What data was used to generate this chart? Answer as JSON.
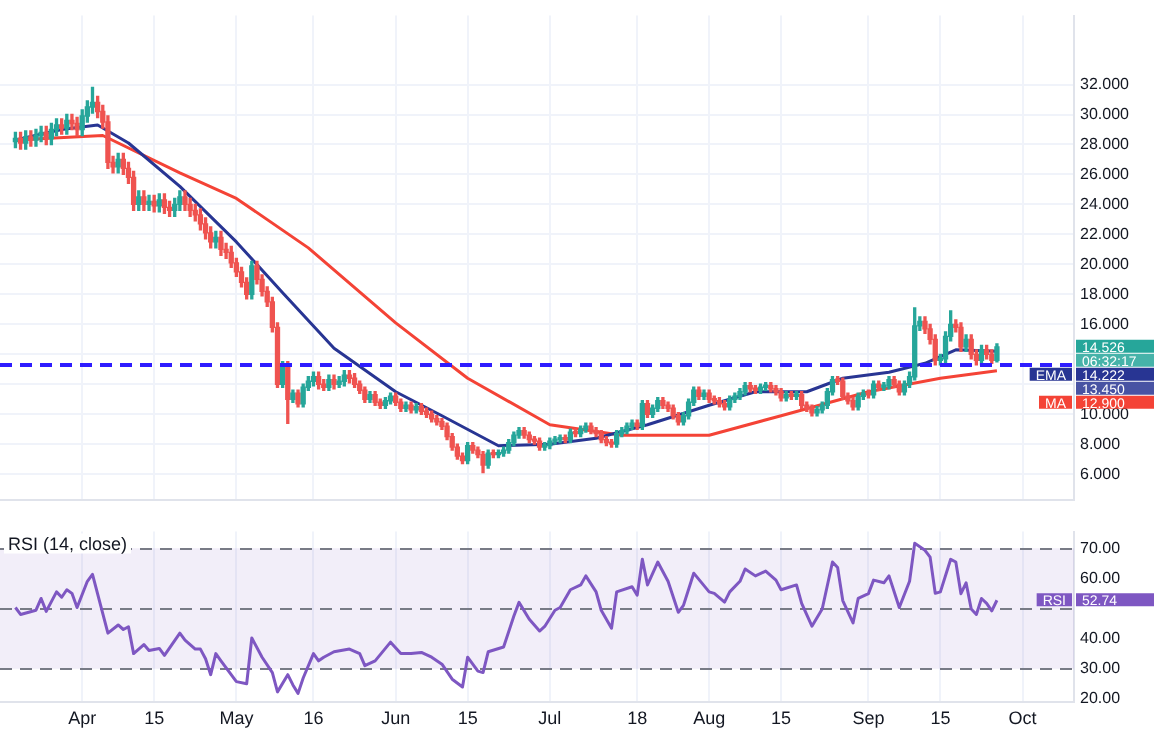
{
  "chart_data": [
    {
      "type": "candlestick",
      "grid": true,
      "tick_labels": "y",
      "x": [
        "--03-19",
        "--03-20",
        "--03-21",
        "--03-22",
        "--03-23",
        "--03-24",
        "--03-25",
        "--03-26",
        "--03-27",
        "--03-28",
        "--03-29",
        "--03-30",
        "--03-31",
        "--04-01",
        "--04-02",
        "--04-03",
        "--04-04",
        "--04-05",
        "--04-06",
        "--04-07",
        "--04-08",
        "--04-09",
        "--04-10",
        "--04-11",
        "--04-12",
        "--04-13",
        "--04-14",
        "--04-15",
        "--04-16",
        "--04-17",
        "--04-18",
        "--04-19",
        "--04-20",
        "--04-21",
        "--04-22",
        "--04-23",
        "--04-24",
        "--04-25",
        "--04-26",
        "--04-27",
        "--04-28",
        "--04-29",
        "--04-30",
        "--05-01",
        "--05-02",
        "--05-03",
        "--05-04",
        "--05-05",
        "--05-06",
        "--05-07",
        "--05-08",
        "--05-09",
        "--05-10",
        "--05-11",
        "--05-12",
        "--05-13",
        "--05-14",
        "--05-15",
        "--05-16",
        "--05-17",
        "--05-18",
        "--05-19",
        "--05-20",
        "--05-21",
        "--05-22",
        "--05-23",
        "--05-24",
        "--05-25",
        "--05-26",
        "--05-27",
        "--05-28",
        "--05-29",
        "--05-30",
        "--05-31",
        "--06-01",
        "--06-02",
        "--06-03",
        "--06-04",
        "--06-05",
        "--06-06",
        "--06-07",
        "--06-08",
        "--06-09",
        "--06-10",
        "--06-11",
        "--06-12",
        "--06-13",
        "--06-14",
        "--06-15",
        "--06-16",
        "--06-17",
        "--06-18",
        "--06-19",
        "--06-20",
        "--06-21",
        "--06-22",
        "--06-23",
        "--06-24",
        "--06-25",
        "--06-26",
        "--06-27",
        "--06-28",
        "--06-29",
        "--06-30",
        "--07-01",
        "--07-02",
        "--07-03",
        "--07-04",
        "--07-05",
        "--07-06",
        "--07-07",
        "--07-08",
        "--07-09",
        "--07-10",
        "--07-11",
        "--07-12",
        "--07-13",
        "--07-14",
        "--07-15",
        "--07-16",
        "--07-17",
        "--07-18",
        "--07-19",
        "--07-20",
        "--07-21",
        "--07-22",
        "--07-23",
        "--07-24",
        "--07-25",
        "--07-26",
        "--07-27",
        "--07-28",
        "--07-29",
        "--07-30",
        "--07-31",
        "--08-01",
        "--08-02",
        "--08-03",
        "--08-04",
        "--08-05",
        "--08-06",
        "--08-07",
        "--08-08",
        "--08-09",
        "--08-10",
        "--08-11",
        "--08-12",
        "--08-13",
        "--08-14",
        "--08-15",
        "--08-16",
        "--08-17",
        "--08-18",
        "--08-19",
        "--08-20",
        "--08-21",
        "--08-22",
        "--08-23",
        "--08-24",
        "--08-25",
        "--08-26",
        "--08-27",
        "--08-28",
        "--08-29",
        "--08-30",
        "--08-31",
        "--09-01",
        "--09-02",
        "--09-03",
        "--09-04",
        "--09-05",
        "--09-06",
        "--09-07",
        "--09-08",
        "--09-09",
        "--09-10",
        "--09-11",
        "--09-12",
        "--09-13",
        "--09-14",
        "--09-15",
        "--09-16",
        "--09-17",
        "--09-18",
        "--09-19",
        "--09-20",
        "--09-21",
        "--09-22",
        "--09-23",
        "--09-24",
        "--09-25",
        "--09-26"
      ],
      "ohlc": [
        [
          28.2,
          28.8,
          27.8,
          28.4
        ],
        [
          28.4,
          28.8,
          27.7,
          28.1
        ],
        [
          28.1,
          28.9,
          27.7,
          28.5
        ],
        [
          28.5,
          28.9,
          27.9,
          28.3
        ],
        [
          28.3,
          29.0,
          27.9,
          28.6
        ],
        [
          28.6,
          29.2,
          28.2,
          28.8
        ],
        [
          28.8,
          29.2,
          28.0,
          28.4
        ],
        [
          28.4,
          29.4,
          28.0,
          29.0
        ],
        [
          29.0,
          29.7,
          28.6,
          29.3
        ],
        [
          29.3,
          29.7,
          28.7,
          29.1
        ],
        [
          29.1,
          30.0,
          28.7,
          29.6
        ],
        [
          29.6,
          30.0,
          29.0,
          29.4
        ],
        [
          29.4,
          29.8,
          28.6,
          29.0
        ],
        [
          29.0,
          30.3,
          28.6,
          29.9
        ],
        [
          29.9,
          30.9,
          29.5,
          30.5
        ],
        [
          30.5,
          31.8,
          30.1,
          30.8
        ],
        [
          30.8,
          31.2,
          29.8,
          30.2
        ],
        [
          30.2,
          30.6,
          29.1,
          29.5
        ],
        [
          29.5,
          29.9,
          26.4,
          26.8
        ],
        [
          26.8,
          27.2,
          26.1,
          26.5
        ],
        [
          26.5,
          27.4,
          26.1,
          27.0
        ],
        [
          27.0,
          27.4,
          26.0,
          26.4
        ],
        [
          26.4,
          26.8,
          25.4,
          25.8
        ],
        [
          25.8,
          26.2,
          23.6,
          24.0
        ],
        [
          24.0,
          24.9,
          23.6,
          24.5
        ],
        [
          24.5,
          24.9,
          23.6,
          24.0
        ],
        [
          24.0,
          24.6,
          23.6,
          24.2
        ],
        [
          24.2,
          24.6,
          23.5,
          23.9
        ],
        [
          23.9,
          24.7,
          23.5,
          24.3
        ],
        [
          24.3,
          24.7,
          23.4,
          23.8
        ],
        [
          23.8,
          24.2,
          23.2,
          23.6
        ],
        [
          23.6,
          24.4,
          23.2,
          24.0
        ],
        [
          24.0,
          24.9,
          23.6,
          24.5
        ],
        [
          24.5,
          24.9,
          23.6,
          24.0
        ],
        [
          24.0,
          24.4,
          23.2,
          23.6
        ],
        [
          23.6,
          24.0,
          22.9,
          23.3
        ],
        [
          23.3,
          23.7,
          22.3,
          22.7
        ],
        [
          22.7,
          23.1,
          21.7,
          22.1
        ],
        [
          22.1,
          22.5,
          21.1,
          21.5
        ],
        [
          21.5,
          22.2,
          21.1,
          21.8
        ],
        [
          21.8,
          22.2,
          20.6,
          21.0
        ],
        [
          21.0,
          21.4,
          20.4,
          20.8
        ],
        [
          20.8,
          21.2,
          19.8,
          20.1
        ],
        [
          20.1,
          20.4,
          19.2,
          19.5
        ],
        [
          19.5,
          19.8,
          18.5,
          18.8
        ],
        [
          18.8,
          19.1,
          17.7,
          18.0
        ],
        [
          18.0,
          20.2,
          17.7,
          19.9
        ],
        [
          19.9,
          20.2,
          18.7,
          19.0
        ],
        [
          19.0,
          19.3,
          17.9,
          18.2
        ],
        [
          18.2,
          18.5,
          17.2,
          17.5
        ],
        [
          17.5,
          17.8,
          15.5,
          15.8
        ],
        [
          15.8,
          16.1,
          11.8,
          12.0
        ],
        [
          12.0,
          13.5,
          11.8,
          13.2
        ],
        [
          13.2,
          13.5,
          9.4,
          11.0
        ],
        [
          11.0,
          11.6,
          10.8,
          11.4
        ],
        [
          11.4,
          11.6,
          10.5,
          10.7
        ],
        [
          10.7,
          12.0,
          10.5,
          11.8
        ],
        [
          11.8,
          12.5,
          11.6,
          12.2
        ],
        [
          12.2,
          12.8,
          11.9,
          12.5
        ],
        [
          12.5,
          12.8,
          11.7,
          12.0
        ],
        [
          12.0,
          12.3,
          11.6,
          11.8
        ],
        [
          11.8,
          12.6,
          11.6,
          12.3
        ],
        [
          12.3,
          12.6,
          11.7,
          12.0
        ],
        [
          12.0,
          12.5,
          11.8,
          12.2
        ],
        [
          12.2,
          12.9,
          11.9,
          12.6
        ],
        [
          12.6,
          12.9,
          12.1,
          12.4
        ],
        [
          12.4,
          12.7,
          11.8,
          12.0
        ],
        [
          12.0,
          12.2,
          11.4,
          11.6
        ],
        [
          11.6,
          11.8,
          10.8,
          11.0
        ],
        [
          11.0,
          11.5,
          10.8,
          11.3
        ],
        [
          11.3,
          11.5,
          10.6,
          10.8
        ],
        [
          10.8,
          11.0,
          10.4,
          10.6
        ],
        [
          10.6,
          11.1,
          10.4,
          10.9
        ],
        [
          10.9,
          11.4,
          10.7,
          11.2
        ],
        [
          11.2,
          11.4,
          10.6,
          10.8
        ],
        [
          10.8,
          11.0,
          10.2,
          10.4
        ],
        [
          10.4,
          10.8,
          10.2,
          10.6
        ],
        [
          10.6,
          10.8,
          10.1,
          10.3
        ],
        [
          10.3,
          10.7,
          10.1,
          10.5
        ],
        [
          10.5,
          10.7,
          10.0,
          10.2
        ],
        [
          10.2,
          10.4,
          9.8,
          10.0
        ],
        [
          10.0,
          10.2,
          9.5,
          9.7
        ],
        [
          9.7,
          9.9,
          9.3,
          9.5
        ],
        [
          9.5,
          9.7,
          9.0,
          9.2
        ],
        [
          9.2,
          9.4,
          8.3,
          8.5
        ],
        [
          8.5,
          8.7,
          7.6,
          7.8
        ],
        [
          7.8,
          8.0,
          7.0,
          7.2
        ],
        [
          7.2,
          7.4,
          6.7,
          6.9
        ],
        [
          6.9,
          8.1,
          6.7,
          7.9
        ],
        [
          7.9,
          8.1,
          7.4,
          7.6
        ],
        [
          7.6,
          7.8,
          7.1,
          7.3
        ],
        [
          7.3,
          7.5,
          6.1,
          6.6
        ],
        [
          6.6,
          7.6,
          6.4,
          7.4
        ],
        [
          7.4,
          7.6,
          7.1,
          7.3
        ],
        [
          7.3,
          7.6,
          7.1,
          7.4
        ],
        [
          7.4,
          7.8,
          7.2,
          7.6
        ],
        [
          7.6,
          8.3,
          7.4,
          8.1
        ],
        [
          8.1,
          8.8,
          7.9,
          8.6
        ],
        [
          8.6,
          9.1,
          8.4,
          8.9
        ],
        [
          8.9,
          9.1,
          8.4,
          8.6
        ],
        [
          8.6,
          8.8,
          8.1,
          8.3
        ],
        [
          8.3,
          8.5,
          8.0,
          8.2
        ],
        [
          8.2,
          8.4,
          7.6,
          7.8
        ],
        [
          7.8,
          8.1,
          7.6,
          7.9
        ],
        [
          7.9,
          8.4,
          7.7,
          8.2
        ],
        [
          8.2,
          8.5,
          8.0,
          8.3
        ],
        [
          8.3,
          8.6,
          8.1,
          8.4
        ],
        [
          8.4,
          8.6,
          8.1,
          8.3
        ],
        [
          8.3,
          9.0,
          8.1,
          8.8
        ],
        [
          8.8,
          9.0,
          8.5,
          8.7
        ],
        [
          8.7,
          9.2,
          8.5,
          9.0
        ],
        [
          9.0,
          9.4,
          8.8,
          9.2
        ],
        [
          9.2,
          9.4,
          8.7,
          8.9
        ],
        [
          8.9,
          9.1,
          8.5,
          8.7
        ],
        [
          8.7,
          8.9,
          8.1,
          8.3
        ],
        [
          8.3,
          8.5,
          7.9,
          8.1
        ],
        [
          8.1,
          8.3,
          7.8,
          8.0
        ],
        [
          8.0,
          8.9,
          7.8,
          8.7
        ],
        [
          8.7,
          9.1,
          8.5,
          8.9
        ],
        [
          8.9,
          9.4,
          8.7,
          9.2
        ],
        [
          9.2,
          9.6,
          9.0,
          9.4
        ],
        [
          9.4,
          9.6,
          9.0,
          9.2
        ],
        [
          9.2,
          10.9,
          9.0,
          10.7
        ],
        [
          10.7,
          10.9,
          9.8,
          10.0
        ],
        [
          10.0,
          10.6,
          9.8,
          10.4
        ],
        [
          10.4,
          11.1,
          10.2,
          10.9
        ],
        [
          10.9,
          11.1,
          10.4,
          10.6
        ],
        [
          10.6,
          10.8,
          10.2,
          10.4
        ],
        [
          10.4,
          10.6,
          9.7,
          9.9
        ],
        [
          9.9,
          10.1,
          9.3,
          9.5
        ],
        [
          9.5,
          10.1,
          9.3,
          9.9
        ],
        [
          9.9,
          11.0,
          9.7,
          10.8
        ],
        [
          10.8,
          11.8,
          10.6,
          11.6
        ],
        [
          11.6,
          11.8,
          11.0,
          11.2
        ],
        [
          11.2,
          11.6,
          11.0,
          11.4
        ],
        [
          11.4,
          11.6,
          10.8,
          11.0
        ],
        [
          11.0,
          11.2,
          10.7,
          10.9
        ],
        [
          10.9,
          11.1,
          10.5,
          10.7
        ],
        [
          10.7,
          10.9,
          10.3,
          10.5
        ],
        [
          10.5,
          11.2,
          10.3,
          11.0
        ],
        [
          11.0,
          11.4,
          10.8,
          11.2
        ],
        [
          11.2,
          11.7,
          11.0,
          11.5
        ],
        [
          11.5,
          12.1,
          11.3,
          11.9
        ],
        [
          11.9,
          12.1,
          11.5,
          11.7
        ],
        [
          11.7,
          11.9,
          11.4,
          11.6
        ],
        [
          11.6,
          12.0,
          11.4,
          11.8
        ],
        [
          11.8,
          12.1,
          11.6,
          11.9
        ],
        [
          11.9,
          12.1,
          11.5,
          11.7
        ],
        [
          11.7,
          11.9,
          11.3,
          11.5
        ],
        [
          11.5,
          11.7,
          10.9,
          11.1
        ],
        [
          11.1,
          11.5,
          10.9,
          11.3
        ],
        [
          11.3,
          11.5,
          11.0,
          11.2
        ],
        [
          11.2,
          11.5,
          11.0,
          11.3
        ],
        [
          11.3,
          11.5,
          10.4,
          10.6
        ],
        [
          10.6,
          10.8,
          10.2,
          10.4
        ],
        [
          10.4,
          10.6,
          9.9,
          10.1
        ],
        [
          10.1,
          10.5,
          9.9,
          10.3
        ],
        [
          10.3,
          10.8,
          10.1,
          10.6
        ],
        [
          10.6,
          11.7,
          10.4,
          11.5
        ],
        [
          11.5,
          12.5,
          11.3,
          12.3
        ],
        [
          12.3,
          12.5,
          12.0,
          12.2
        ],
        [
          12.2,
          12.4,
          11.0,
          11.2
        ],
        [
          11.2,
          11.4,
          10.7,
          10.9
        ],
        [
          10.9,
          11.1,
          10.3,
          10.5
        ],
        [
          10.5,
          11.4,
          10.3,
          11.2
        ],
        [
          11.2,
          11.6,
          11.0,
          11.4
        ],
        [
          11.4,
          11.6,
          11.1,
          11.3
        ],
        [
          11.3,
          12.2,
          11.1,
          12.0
        ],
        [
          12.0,
          12.2,
          11.6,
          11.8
        ],
        [
          11.8,
          12.1,
          11.6,
          11.9
        ],
        [
          11.9,
          12.5,
          11.7,
          12.3
        ],
        [
          12.3,
          12.5,
          11.8,
          12.0
        ],
        [
          12.0,
          12.2,
          11.3,
          11.5
        ],
        [
          11.5,
          12.2,
          11.3,
          12.0
        ],
        [
          12.0,
          12.8,
          11.8,
          12.5
        ],
        [
          12.5,
          17.1,
          12.3,
          15.9
        ],
        [
          15.9,
          16.5,
          15.6,
          16.2
        ],
        [
          16.2,
          16.5,
          15.4,
          15.7
        ],
        [
          15.7,
          16.0,
          14.7,
          15.0
        ],
        [
          15.0,
          15.3,
          13.3,
          13.6
        ],
        [
          13.6,
          14.0,
          13.3,
          13.7
        ],
        [
          13.7,
          15.5,
          13.4,
          15.2
        ],
        [
          15.2,
          16.9,
          14.9,
          16.0
        ],
        [
          16.0,
          16.3,
          15.5,
          15.8
        ],
        [
          15.8,
          16.1,
          14.2,
          14.5
        ],
        [
          14.5,
          15.3,
          14.2,
          15.0
        ],
        [
          15.0,
          15.3,
          13.7,
          14.0
        ],
        [
          14.0,
          14.3,
          13.3,
          13.6
        ],
        [
          13.6,
          14.6,
          13.3,
          14.3
        ],
        [
          14.3,
          14.6,
          13.7,
          14.0
        ],
        [
          14.0,
          14.3,
          13.4,
          13.6
        ],
        [
          13.6,
          14.7,
          13.5,
          14.5
        ]
      ],
      "colors": [
        "#26a69a",
        "#ef5350",
        "#26a69a",
        "#ef5350",
        "#26a69a",
        "#26a69a",
        "#ef5350",
        "#26a69a",
        "#26a69a",
        "#ef5350",
        "#26a69a",
        "#ef5350",
        "#ef5350",
        "#26a69a",
        "#26a69a",
        "#26a69a",
        "#ef5350",
        "#ef5350",
        "#ef5350",
        "#ef5350",
        "#26a69a",
        "#ef5350",
        "#ef5350",
        "#ef5350",
        "#26a69a",
        "#ef5350",
        "#26a69a",
        "#ef5350",
        "#26a69a",
        "#ef5350",
        "#ef5350",
        "#26a69a",
        "#26a69a",
        "#ef5350",
        "#ef5350",
        "#ef5350",
        "#ef5350",
        "#ef5350",
        "#ef5350",
        "#26a69a",
        "#ef5350",
        "#ef5350",
        "#ef5350",
        "#ef5350",
        "#ef5350",
        "#ef5350",
        "#26a69a",
        "#ef5350",
        "#ef5350",
        "#ef5350",
        "#ef5350",
        "#ef5350",
        "#26a69a",
        "#ef5350",
        "#26a69a",
        "#ef5350",
        "#26a69a",
        "#26a69a",
        "#26a69a",
        "#ef5350",
        "#ef5350",
        "#26a69a",
        "#ef5350",
        "#26a69a",
        "#26a69a",
        "#ef5350",
        "#ef5350",
        "#ef5350",
        "#ef5350",
        "#26a69a",
        "#ef5350",
        "#ef5350",
        "#26a69a",
        "#26a69a",
        "#ef5350",
        "#ef5350",
        "#26a69a",
        "#ef5350",
        "#26a69a",
        "#ef5350",
        "#ef5350",
        "#ef5350",
        "#ef5350",
        "#ef5350",
        "#ef5350",
        "#ef5350",
        "#ef5350",
        "#ef5350",
        "#26a69a",
        "#ef5350",
        "#ef5350",
        "#ef5350",
        "#26a69a",
        "#ef5350",
        "#26a69a",
        "#26a69a",
        "#26a69a",
        "#26a69a",
        "#26a69a",
        "#ef5350",
        "#ef5350",
        "#ef5350",
        "#ef5350",
        "#26a69a",
        "#26a69a",
        "#26a69a",
        "#26a69a",
        "#ef5350",
        "#26a69a",
        "#ef5350",
        "#26a69a",
        "#26a69a",
        "#ef5350",
        "#ef5350",
        "#ef5350",
        "#ef5350",
        "#ef5350",
        "#26a69a",
        "#26a69a",
        "#26a69a",
        "#26a69a",
        "#ef5350",
        "#26a69a",
        "#ef5350",
        "#26a69a",
        "#26a69a",
        "#ef5350",
        "#ef5350",
        "#ef5350",
        "#ef5350",
        "#26a69a",
        "#26a69a",
        "#26a69a",
        "#ef5350",
        "#26a69a",
        "#ef5350",
        "#ef5350",
        "#ef5350",
        "#ef5350",
        "#26a69a",
        "#26a69a",
        "#26a69a",
        "#26a69a",
        "#ef5350",
        "#ef5350",
        "#26a69a",
        "#26a69a",
        "#ef5350",
        "#ef5350",
        "#ef5350",
        "#26a69a",
        "#ef5350",
        "#26a69a",
        "#ef5350",
        "#ef5350",
        "#ef5350",
        "#26a69a",
        "#26a69a",
        "#26a69a",
        "#26a69a",
        "#ef5350",
        "#ef5350",
        "#ef5350",
        "#ef5350",
        "#26a69a",
        "#26a69a",
        "#ef5350",
        "#26a69a",
        "#ef5350",
        "#26a69a",
        "#26a69a",
        "#ef5350",
        "#ef5350",
        "#26a69a",
        "#26a69a",
        "#26a69a",
        "#26a69a",
        "#ef5350",
        "#ef5350",
        "#ef5350",
        "#26a69a",
        "#26a69a",
        "#26a69a",
        "#ef5350",
        "#ef5350",
        "#26a69a",
        "#ef5350",
        "#ef5350",
        "#26a69a",
        "#ef5350",
        "#ef5350",
        "#26a69a"
      ],
      "series": [
        {
          "type": "line",
          "name": "EMA",
          "color": "#283593",
          "x": [
            "--03-19",
            "--03-28",
            "--04-04",
            "--04-10",
            "--04-20",
            "--05-01",
            "--05-10",
            "--05-20",
            "--06-01",
            "--06-10",
            "--06-21",
            "--07-01",
            "--07-10",
            "--07-20",
            "--08-01",
            "--08-10",
            "--08-20",
            "--08-27",
            "--09-05",
            "--09-12",
            "--09-18",
            "--09-26"
          ],
          "values": [
            28.3,
            29.0,
            29.3,
            28.1,
            25.2,
            21.5,
            18.1,
            14.4,
            11.5,
            9.9,
            7.9,
            8.0,
            8.4,
            9.3,
            10.6,
            11.5,
            11.5,
            12.4,
            12.8,
            13.4,
            14.3,
            14.2
          ]
        },
        {
          "type": "line",
          "name": "MA",
          "color": "#f44336",
          "x": [
            "--03-19",
            "--04-05",
            "--04-20",
            "--05-01",
            "--05-15",
            "--06-01",
            "--06-15",
            "--07-01",
            "--07-15",
            "--08-01",
            "--08-15",
            "--09-01",
            "--09-15",
            "--09-26"
          ],
          "values": [
            28.3,
            28.6,
            26.1,
            24.4,
            21.1,
            16.1,
            12.4,
            9.3,
            8.6,
            8.6,
            9.9,
            11.5,
            12.4,
            12.9
          ]
        }
      ],
      "xlim": [
        "--03-16",
        "--10-11"
      ],
      "xticks": [
        {
          "value": "--04-01",
          "label": null
        },
        {
          "value": "--04-15",
          "label": null
        },
        {
          "value": "--05-01",
          "label": null
        },
        {
          "value": "--05-16",
          "label": null
        },
        {
          "value": "--06-01",
          "label": null
        },
        {
          "value": "--06-15",
          "label": null
        },
        {
          "value": "--07-01",
          "label": null
        },
        {
          "value": "--07-18",
          "label": null
        },
        {
          "value": "--08-01",
          "label": null
        },
        {
          "value": "--08-15",
          "label": null
        },
        {
          "value": "--09-01",
          "label": null
        },
        {
          "value": "--09-15",
          "label": null
        },
        {
          "value": "--10-01",
          "label": null
        }
      ],
      "ylim": [
        4.25,
        36.6
      ],
      "yticks": [
        {
          "value": 6,
          "label": "6.000"
        },
        {
          "value": 8,
          "label": "8.000"
        },
        {
          "value": 10,
          "label": "10.000"
        },
        {
          "value": 12,
          "label": null
        },
        {
          "value": 14,
          "label": null
        },
        {
          "value": 16,
          "label": "16.000"
        },
        {
          "value": 18,
          "label": "18.000"
        },
        {
          "value": 20,
          "label": "20.000"
        },
        {
          "value": 22,
          "label": "22.000"
        },
        {
          "value": 24,
          "label": "24.000"
        },
        {
          "value": 26,
          "label": "26.000"
        },
        {
          "value": 28,
          "label": "28.000"
        },
        {
          "value": 30,
          "label": "30.000"
        },
        {
          "value": 32,
          "label": "32.000"
        }
      ],
      "ref_lines": [
        {
          "axis": "y",
          "value": 13.4,
          "color": "#2e1cff",
          "line_style": "dashed"
        }
      ],
      "annotations": [
        "14.526",
        "06:32:17",
        "14.222",
        "13.450",
        "12.900"
      ]
    },
    {
      "type": "line",
      "title": "RSI (14, close)",
      "grid": "x",
      "series": [
        {
          "name": "RSI",
          "color": "#7e57c2",
          "x": [
            "--03-19",
            "--03-20",
            "--03-23",
            "--03-24",
            "--03-25",
            "--03-27",
            "--03-28",
            "--03-29",
            "--03-30",
            "--03-31",
            "--04-02",
            "--04-03",
            "--04-06",
            "--04-08",
            "--04-09",
            "--04-10",
            "--04-11",
            "--04-13",
            "--04-14",
            "--04-16",
            "--04-17",
            "--04-20",
            "--04-21",
            "--04-23",
            "--04-24",
            "--04-25",
            "--04-26",
            "--04-27",
            "--04-28",
            "--05-01",
            "--05-03",
            "--05-04",
            "--05-06",
            "--05-08",
            "--05-09",
            "--05-11",
            "--05-12",
            "--05-13",
            "--05-14",
            "--05-16",
            "--05-17",
            "--05-18",
            "--05-20",
            "--05-23",
            "--05-25",
            "--05-26",
            "--05-28",
            "--05-31",
            "--06-02",
            "--06-04",
            "--06-06",
            "--06-08",
            "--06-10",
            "--06-12",
            "--06-14",
            "--06-15",
            "--06-17",
            "--06-18",
            "--06-19",
            "--06-22",
            "--06-24",
            "--06-25",
            "--06-27",
            "--06-29",
            "--06-30",
            "--07-02",
            "--07-03",
            "--07-05",
            "--07-07",
            "--07-08",
            "--07-10",
            "--07-11",
            "--07-13",
            "--07-14",
            "--07-17",
            "--07-18",
            "--07-19",
            "--07-20",
            "--07-22",
            "--07-24",
            "--07-26",
            "--07-27",
            "--07-29",
            "--08-01",
            "--08-02",
            "--08-04",
            "--08-05",
            "--08-07",
            "--08-08",
            "--08-10",
            "--08-12",
            "--08-14",
            "--08-15",
            "--08-18",
            "--08-19",
            "--08-21",
            "--08-23",
            "--08-25",
            "--08-26",
            "--08-27",
            "--08-29",
            "--08-30",
            "--09-01",
            "--09-02",
            "--09-04",
            "--09-05",
            "--09-07",
            "--09-09",
            "--09-10",
            "--09-12",
            "--09-13",
            "--09-14",
            "--09-15",
            "--09-17",
            "--09-18",
            "--09-19",
            "--09-20",
            "--09-21",
            "--09-22",
            "--09-23",
            "--09-24",
            "--09-25",
            "--09-26"
          ],
          "values": [
            50.3,
            48,
            49.4,
            53.3,
            49,
            55.5,
            53.7,
            56.2,
            55,
            50.3,
            59,
            61.3,
            41.8,
            44.5,
            43,
            43.9,
            35,
            38,
            36,
            36.7,
            34.4,
            41.8,
            39.5,
            36.5,
            36.5,
            33.3,
            28,
            35,
            32.6,
            25.7,
            25,
            40.2,
            33.8,
            28.7,
            22.3,
            28,
            24.6,
            21.8,
            26.9,
            35,
            32.6,
            33.8,
            35.6,
            36.5,
            35,
            31,
            32.6,
            38.8,
            35,
            35,
            35.4,
            33.8,
            31.5,
            26.5,
            23.9,
            33.8,
            29.2,
            28.7,
            35.6,
            37.2,
            47.5,
            52,
            46.4,
            42.5,
            44,
            49.4,
            50.3,
            56.2,
            57.8,
            60.8,
            55.5,
            49.4,
            43.4,
            55.5,
            57.2,
            54.4,
            66.3,
            57.8,
            65.4,
            59,
            48.7,
            51,
            61.7,
            55.5,
            55,
            52.1,
            55.5,
            59,
            63.1,
            60.8,
            62.4,
            59.4,
            56.2,
            57.8,
            51.7,
            44.1,
            49.8,
            65.4,
            63.6,
            52.6,
            45.2,
            53.3,
            54.9,
            59.4,
            58.5,
            60.8,
            50.3,
            59,
            71.6,
            69.3,
            67,
            55,
            55.5,
            66.3,
            65.4,
            54.9,
            58.5,
            49.8,
            48,
            53.3,
            51.7,
            49.2,
            52.7
          ]
        }
      ],
      "xlim": [
        "--03-16",
        "--10-11"
      ],
      "xticks": [
        {
          "value": "--04-01",
          "label": "Apr"
        },
        {
          "value": "--04-15",
          "label": "15"
        },
        {
          "value": "--05-01",
          "label": "May"
        },
        {
          "value": "--05-16",
          "label": "16"
        },
        {
          "value": "--06-01",
          "label": "Jun"
        },
        {
          "value": "--06-15",
          "label": "15"
        },
        {
          "value": "--07-01",
          "label": "Jul"
        },
        {
          "value": "--07-18",
          "label": "18"
        },
        {
          "value": "--08-01",
          "label": "Aug"
        },
        {
          "value": "--08-15",
          "label": "15"
        },
        {
          "value": "--09-01",
          "label": "Sep"
        },
        {
          "value": "--09-15",
          "label": "15"
        },
        {
          "value": "--10-01",
          "label": "Oct"
        }
      ],
      "ylim": [
        18.8,
        75.5
      ],
      "yticks": [
        {
          "value": 20,
          "label": "20.00"
        },
        {
          "value": 30,
          "label": "30.00"
        },
        {
          "value": 40,
          "label": "40.00"
        },
        {
          "value": 50,
          "label": null
        },
        {
          "value": 60,
          "label": "60.00"
        },
        {
          "value": 70,
          "label": "70.00"
        }
      ],
      "bands": [
        {
          "axis": "y",
          "from": 30,
          "to": 70,
          "color": "#7e57c2"
        }
      ],
      "ref_lines": [
        {
          "axis": "y",
          "value": 70,
          "color": "#787b86",
          "line_style": "dashed"
        },
        {
          "axis": "y",
          "value": 50,
          "color": "#787b86",
          "line_style": "dashed"
        },
        {
          "axis": "y",
          "value": 30,
          "color": "#787b86",
          "line_style": "dashed"
        }
      ],
      "annotations": [
        "52.74"
      ]
    }
  ]
}
